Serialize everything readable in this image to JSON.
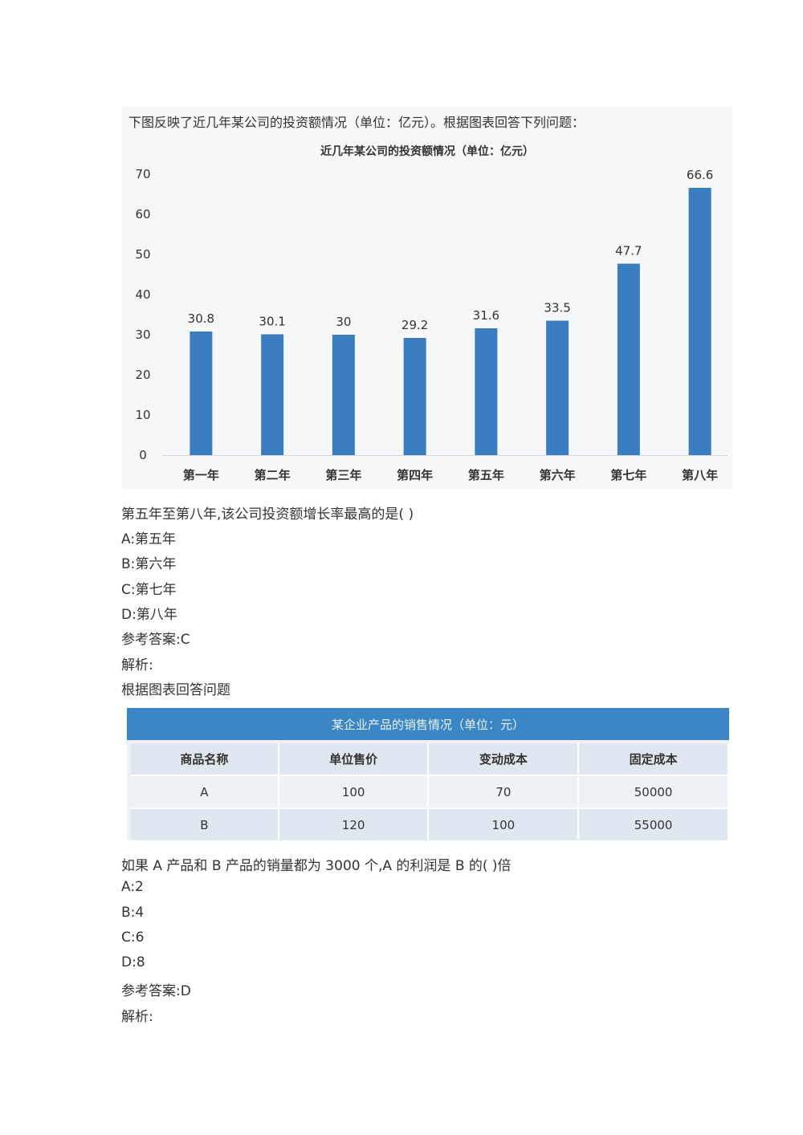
{
  "question1": {
    "intro": "下图反映了近几年某公司的投资额情况（单位：亿元）。根据图表回答下列问题：",
    "prompt": "第五年至第八年,该公司投资额增长率最高的是( )",
    "options": [
      "A:第五年",
      "B:第六年",
      "C:第七年",
      "D:第八年"
    ],
    "answer": "参考答案:C",
    "analysis_label": "解析:"
  },
  "chart_data": {
    "type": "bar",
    "title": "近几年某公司的投资额情况（单位：亿元）",
    "categories": [
      "第一年",
      "第二年",
      "第三年",
      "第四年",
      "第五年",
      "第六年",
      "第七年",
      "第八年"
    ],
    "values": [
      30.8,
      30.1,
      30,
      29.2,
      31.6,
      33.5,
      47.7,
      66.6
    ],
    "value_labels": [
      "30.8",
      "30.1",
      "30",
      "29.2",
      "31.6",
      "33.5",
      "47.7",
      "66.6"
    ],
    "yticks": [
      "0",
      "10",
      "20",
      "30",
      "40",
      "50",
      "60",
      "70"
    ],
    "ylim": [
      0,
      70
    ],
    "grid": false,
    "bar_color": "#3a7dc1"
  },
  "question2": {
    "lead": "根据图表回答问题",
    "table": {
      "title": "某企业产品的销售情况（单位：元）",
      "headers": [
        "商品名称",
        "单位售价",
        "变动成本",
        "固定成本"
      ],
      "rows": [
        [
          "A",
          "100",
          "70",
          "50000"
        ],
        [
          "B",
          "120",
          "100",
          "55000"
        ]
      ]
    },
    "prompt": "如果 A 产品和 B 产品的销量都为 3000 个,A 的利润是 B 的( )倍",
    "options": [
      "A:2",
      "B:4",
      "C:6",
      "D:8"
    ],
    "answer": "参考答案:D",
    "analysis_label": "解析:"
  },
  "colors": {
    "table_header_bg": "#3d86c6",
    "table_head_row": "#dfe7f0",
    "chart_bg": "#f5f7f8"
  }
}
